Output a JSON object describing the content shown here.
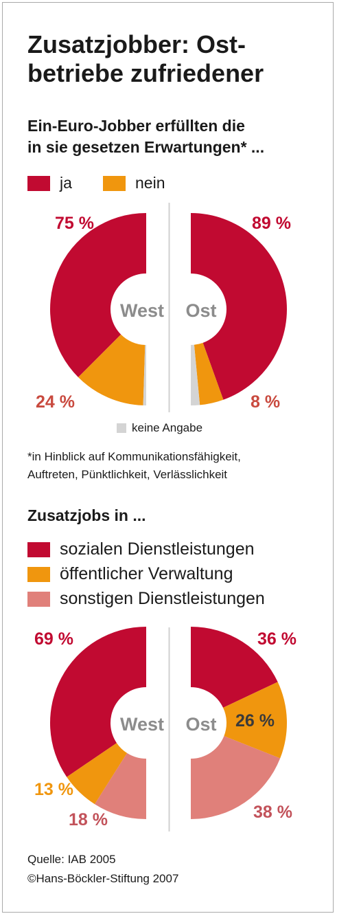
{
  "header": {
    "title_line1": "Zusatzjobber: Ost-",
    "title_line2": "betriebe zufriedener"
  },
  "section1": {
    "subtitle_line1": "Ein-Euro-Jobber erfüllten die",
    "subtitle_line2": "in sie gesetzen Erwartungen* ...",
    "legend": [
      {
        "label": "ja",
        "color": "#c10a31"
      },
      {
        "label": "nein",
        "color": "#f0960e"
      }
    ],
    "no_answer_label": "keine Angabe",
    "no_answer_color": "#d4d4d4",
    "footnote_line1": "*in Hinblick auf Kommunikationsfähigkeit,",
    "footnote_line2": "Auftreten, Pünktlichkeit, Verlässlichkeit"
  },
  "section2": {
    "heading": "Zusatzjobs in ...",
    "legend": [
      {
        "label": "sozialen Dienstleistungen",
        "color": "#c10a31"
      },
      {
        "label": "öffentlicher Verwaltung",
        "color": "#f0960e"
      },
      {
        "label": "sonstigen Dienstleistungen",
        "color": "#e0807a"
      }
    ]
  },
  "footer": {
    "source": "Quelle: IAB 2005",
    "copyright": "©Hans-Böckler-Stiftung 2007"
  },
  "chart_data": [
    {
      "type": "pie",
      "title": "Ein-Euro-Jobber erfüllten die in sie gesetzen Erwartungen*",
      "categories": [
        "West",
        "Ost"
      ],
      "series": [
        {
          "name": "ja",
          "values": [
            75,
            89
          ],
          "labels": [
            "75 %",
            "89 %"
          ]
        },
        {
          "name": "nein",
          "values": [
            24,
            8
          ],
          "labels": [
            "24 %",
            "8 %"
          ]
        },
        {
          "name": "keine Angabe",
          "values": [
            1,
            3
          ],
          "labels": [
            "",
            ""
          ]
        }
      ],
      "center_labels": [
        "West",
        "Ost"
      ],
      "legend": "top-left"
    },
    {
      "type": "pie",
      "title": "Zusatzjobs in ...",
      "categories": [
        "West",
        "Ost"
      ],
      "series": [
        {
          "name": "sozialen Dienstleistungen",
          "values": [
            69,
            36
          ],
          "labels": [
            "69 %",
            "36 %"
          ]
        },
        {
          "name": "öffentlicher Verwaltung",
          "values": [
            13,
            26
          ],
          "labels": [
            "13 %",
            "26 %"
          ]
        },
        {
          "name": "sonstigen Dienstleistungen",
          "values": [
            18,
            38
          ],
          "labels": [
            "18 %",
            "38 %"
          ]
        }
      ],
      "center_labels": [
        "West",
        "Ost"
      ],
      "legend": "top-left"
    }
  ]
}
